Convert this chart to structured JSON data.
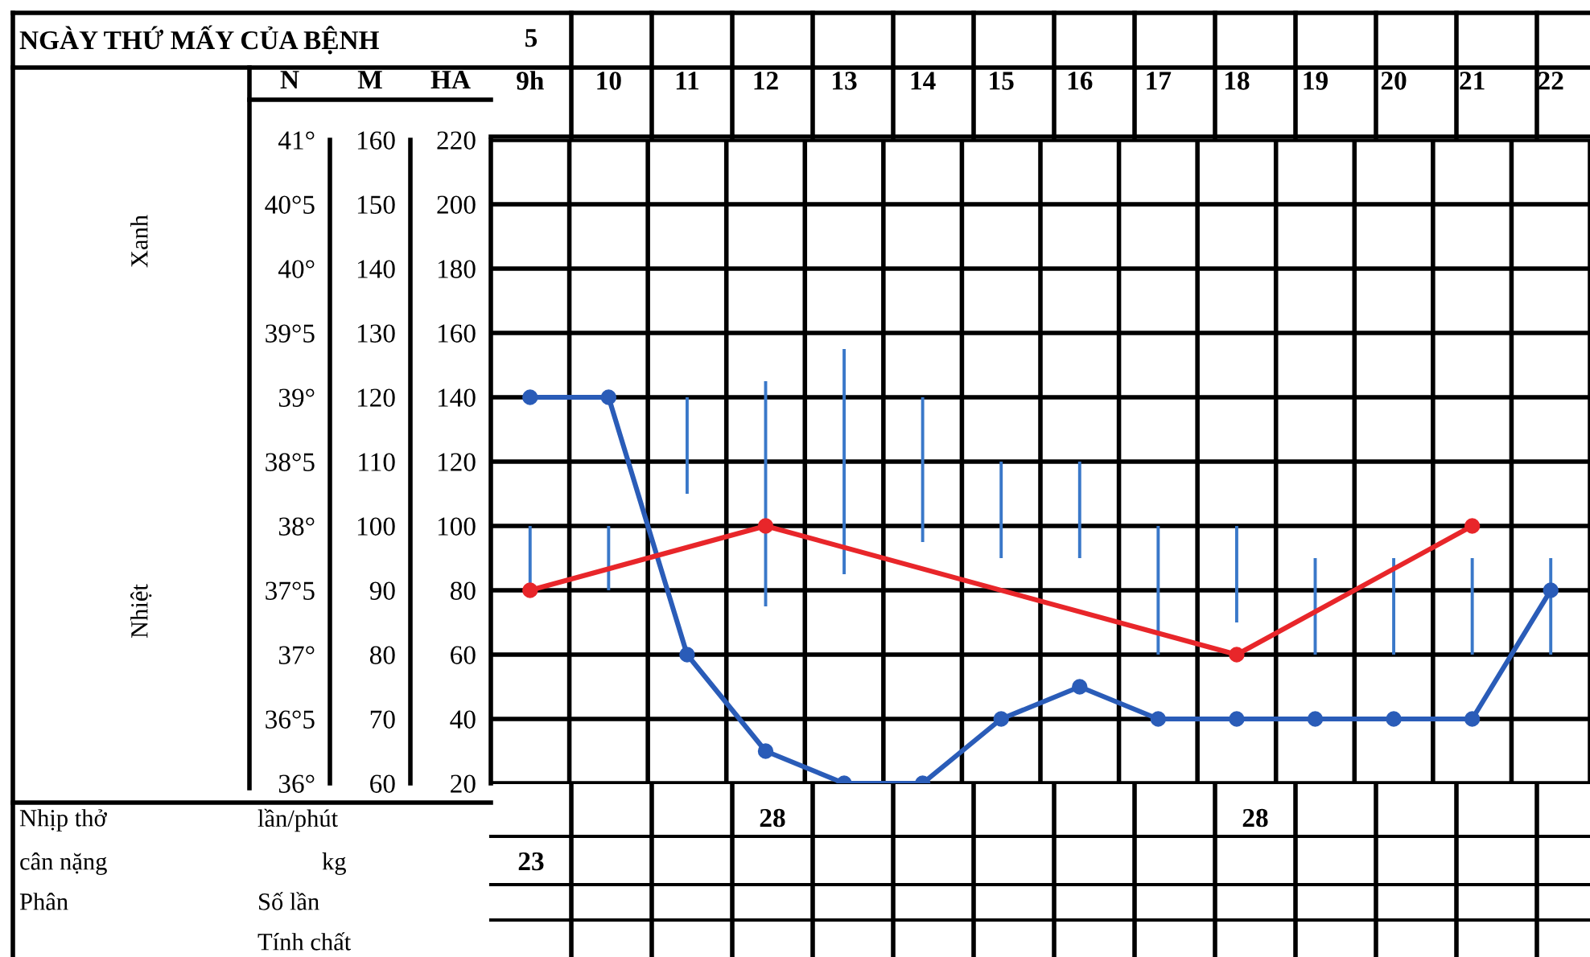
{
  "chart_data": {
    "type": "bar",
    "categories": [
      "9h",
      "10",
      "11",
      "12",
      "13",
      "14",
      "15",
      "16",
      "17",
      "18",
      "19",
      "20",
      "21",
      "22"
    ],
    "series": [
      {
        "axis": "y",
        "color": "#3a78c9",
        "base": [
          80,
          80,
          110,
          75,
          85,
          95,
          90,
          90,
          60,
          70,
          60,
          60,
          60,
          60
        ],
        "values": [
          20,
          20,
          30,
          70,
          70,
          45,
          30,
          30,
          40,
          30,
          30,
          30,
          30,
          30
        ]
      },
      {
        "type": "line",
        "axis": "y2",
        "color": "#2a5cb8",
        "values": [
          120,
          120,
          80,
          65,
          60,
          60,
          70,
          75,
          70,
          70,
          70,
          70,
          70,
          90
        ]
      },
      {
        "type": "line",
        "axis": "y3",
        "color": "#e8262a",
        "values": [
          37.5,
          null,
          null,
          38,
          null,
          null,
          null,
          null,
          null,
          37,
          null,
          null,
          38,
          null
        ]
      }
    ],
    "ylabel": "HA",
    "y2label": "M",
    "y3label": "N",
    "ylim": [
      20,
      220
    ],
    "yticks": [
      20,
      40,
      60,
      80,
      100,
      120,
      140,
      160,
      180,
      200,
      220
    ],
    "y2lim": [
      60,
      160
    ],
    "y2ticks": [
      60,
      70,
      80,
      90,
      100,
      110,
      120,
      130,
      140,
      150,
      160
    ],
    "y3lim": [
      36,
      41
    ],
    "y3ticks": [
      {
        "value": 36,
        "label": "36°"
      },
      {
        "value": 36.5,
        "label": "36°5"
      },
      {
        "value": 37,
        "label": "37°"
      },
      {
        "value": 37.5,
        "label": "37°5"
      },
      {
        "value": 38,
        "label": "38°"
      },
      {
        "value": 38.5,
        "label": "38°5"
      },
      {
        "value": 39,
        "label": "39°"
      },
      {
        "value": 39.5,
        "label": "39°5"
      },
      {
        "value": 40,
        "label": "40°"
      },
      {
        "value": 40.5,
        "label": "40°5"
      },
      {
        "value": 41,
        "label": "41°"
      }
    ],
    "grid": true,
    "marker": "circle",
    "line_style": "solid",
    "legend": false,
    "annotations": [
      "NGÀY THỨ MẤY CỦA BỆNH",
      "5",
      "Xanh",
      "Nhiệt",
      "Nhịp thở",
      "lần/phút",
      "cân nặng",
      "kg",
      "Phân",
      "Số lần",
      "Tính chất",
      "28",
      "28",
      "23"
    ]
  }
}
